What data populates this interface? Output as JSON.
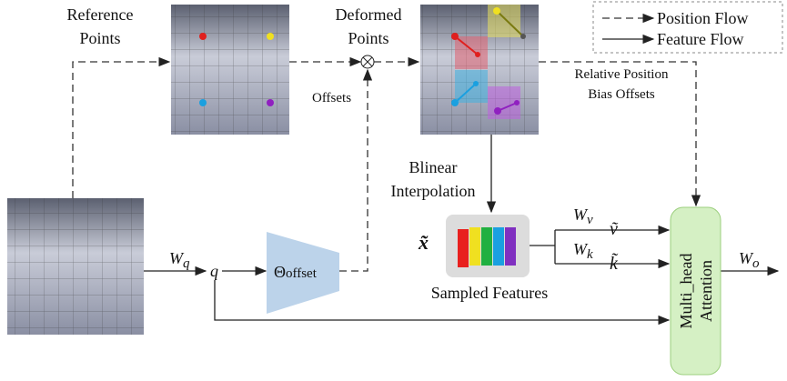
{
  "reference_points": {
    "lines": [
      "Reference",
      "Points"
    ]
  },
  "deformed_points": {
    "lines": [
      "Deformed",
      "Points"
    ]
  },
  "offsets": "Offsets",
  "relative_position": {
    "lines": [
      "Relative Position",
      "Bias Offsets"
    ]
  },
  "legend": {
    "items": [
      "Position Flow",
      "Feature Flow"
    ]
  },
  "interpolation": {
    "lines": [
      "Blinear",
      "Interpolation"
    ]
  },
  "sampled_features": "Sampled Features",
  "x_tilde": "x̃",
  "w_q": {
    "main": "W",
    "sub": "q"
  },
  "q": "q",
  "theta": {
    "main": "Θ",
    "sub": "offset"
  },
  "w_v": {
    "main": "W",
    "sub": "v"
  },
  "v_tilde": "ṽ",
  "w_k": {
    "main": "W",
    "sub": "k"
  },
  "k_tilde": "k̃",
  "attention": {
    "lines": [
      "Multi_head",
      "Attention"
    ]
  },
  "w_o": {
    "main": "W",
    "sub": "o"
  }
}
